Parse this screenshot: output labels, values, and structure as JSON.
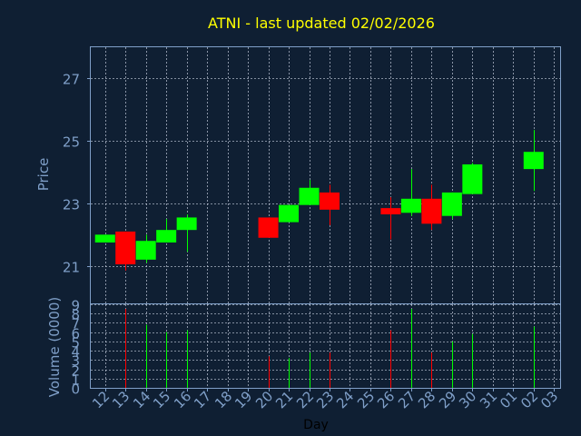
{
  "chart_data": {
    "type": "candlestick",
    "title": "ATNI - last updated 02/02/2026",
    "xlabel": "Day",
    "price_panel": {
      "ylabel": "Price",
      "ylim": [
        19.8,
        28.0
      ],
      "yticks": [
        21,
        23,
        25,
        27
      ],
      "grid": true
    },
    "volume_panel": {
      "ylabel": "Volume (0000)",
      "ylim": [
        0,
        9
      ],
      "yticks": [
        0,
        1,
        2,
        3,
        4,
        5,
        6,
        7,
        8,
        9
      ],
      "grid": true
    },
    "x_ticks": [
      "12",
      "13",
      "14",
      "15",
      "16",
      "17",
      "18",
      "19",
      "20",
      "21",
      "22",
      "23",
      "24",
      "25",
      "26",
      "27",
      "28",
      "29",
      "30",
      "31",
      "01",
      "02",
      "03"
    ],
    "candles": [
      {
        "day": "12",
        "open": 21.75,
        "close": 22.0,
        "high": 22.0,
        "low": 21.75,
        "volume": 0
      },
      {
        "day": "13",
        "open": 22.1,
        "close": 21.05,
        "high": 22.1,
        "low": 20.85,
        "volume": 8.5
      },
      {
        "day": "14",
        "open": 21.2,
        "close": 21.8,
        "high": 22.0,
        "low": 21.1,
        "volume": 6.8
      },
      {
        "day": "15",
        "open": 21.75,
        "close": 22.15,
        "high": 22.5,
        "low": 21.75,
        "volume": 6.0
      },
      {
        "day": "16",
        "open": 22.15,
        "close": 22.55,
        "high": 22.65,
        "low": 21.45,
        "volume": 6.2
      },
      {
        "day": "20",
        "open": 22.55,
        "close": 21.9,
        "high": 22.55,
        "low": 21.9,
        "volume": 3.4
      },
      {
        "day": "21",
        "open": 22.4,
        "close": 22.95,
        "high": 22.95,
        "low": 22.4,
        "volume": 3.2
      },
      {
        "day": "22",
        "open": 22.95,
        "close": 23.5,
        "high": 23.75,
        "low": 22.95,
        "volume": 3.8
      },
      {
        "day": "23",
        "open": 23.35,
        "close": 22.8,
        "high": 23.6,
        "low": 22.3,
        "volume": 3.8
      },
      {
        "day": "26",
        "open": 22.85,
        "close": 22.65,
        "high": 23.2,
        "low": 21.85,
        "volume": 6.2
      },
      {
        "day": "27",
        "open": 22.7,
        "close": 23.15,
        "high": 24.1,
        "low": 22.6,
        "volume": 8.5
      },
      {
        "day": "28",
        "open": 23.15,
        "close": 22.35,
        "high": 23.6,
        "low": 22.15,
        "volume": 3.8
      },
      {
        "day": "29",
        "open": 22.6,
        "close": 23.35,
        "high": 23.35,
        "low": 22.5,
        "volume": 5.0
      },
      {
        "day": "30",
        "open": 23.3,
        "close": 24.25,
        "high": 24.3,
        "low": 23.3,
        "volume": 5.8
      },
      {
        "day": "02",
        "open": 24.1,
        "close": 24.65,
        "high": 25.35,
        "low": 23.4,
        "volume": 6.6
      }
    ],
    "colors": {
      "background": "#0f1f33",
      "panel_border": "#7f9fc8",
      "grid": "#d0d8e8",
      "up": "#00ff00",
      "down": "#ff0000",
      "title": "#ffff00",
      "axis_text": "#7f9fc8",
      "xlabel_text": "#000000"
    }
  }
}
